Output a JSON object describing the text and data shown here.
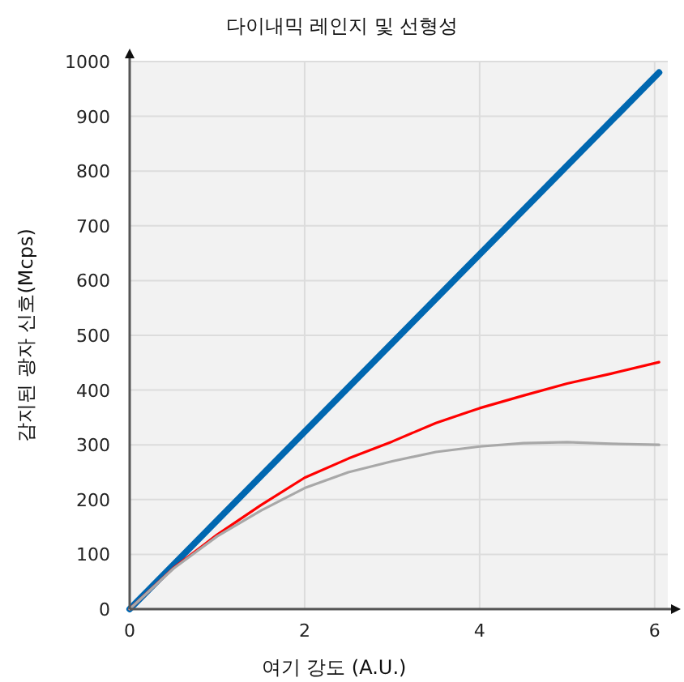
{
  "chart_data": {
    "type": "line",
    "title": "다이내믹 레인지 및 선형성",
    "xlabel": "여기 강도 (A.U.)",
    "ylabel": "감지된 광자 신호(Mcps)",
    "xlim": [
      0,
      6.15
    ],
    "ylim": [
      0,
      1000
    ],
    "xticks": [
      0,
      2,
      4,
      6
    ],
    "yticks": [
      0,
      100,
      200,
      300,
      400,
      500,
      600,
      700,
      800,
      900,
      1000
    ],
    "grid": true,
    "marker": "none",
    "line_style": "solid",
    "series": [
      {
        "color": "#0067b0",
        "x": [
          0,
          6.05
        ],
        "values": [
          0,
          980
        ]
      },
      {
        "color": "#ff0000",
        "x": [
          0,
          0.5,
          1,
          1.5,
          2,
          2.5,
          3,
          3.5,
          4,
          4.5,
          5,
          5.5,
          6.05
        ],
        "values": [
          0,
          75,
          136,
          190,
          240,
          275,
          306,
          340,
          367,
          390,
          412,
          430,
          451
        ]
      },
      {
        "color": "#a8a8a8",
        "x": [
          0,
          0.5,
          1,
          1.5,
          2,
          2.5,
          3,
          3.5,
          4,
          4.5,
          5,
          5.5,
          6.05
        ],
        "values": [
          0,
          74,
          133,
          180,
          221,
          250,
          270,
          287,
          297,
          303,
          305,
          302,
          300
        ]
      }
    ]
  }
}
